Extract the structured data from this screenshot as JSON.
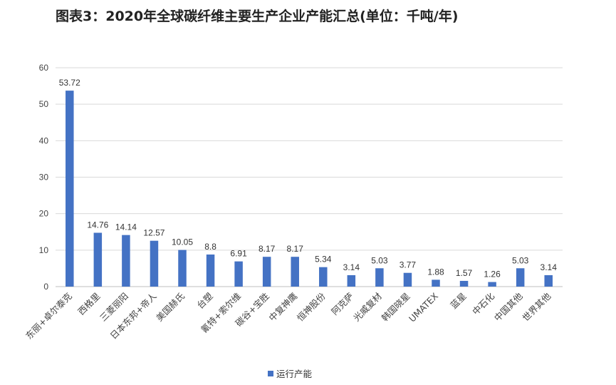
{
  "chart_data": {
    "type": "bar",
    "title": "图表3：2020年全球碳纤维主要生产企业产能汇总(单位：千吨/年)",
    "categories": [
      "东丽+卓尔泰克",
      "西格里",
      "三菱丽阳",
      "日本东邦+帝人",
      "美国赫氏",
      "台塑",
      "氰特+索尔维",
      "碳谷+宝胜",
      "中复神鹰",
      "恒神股份",
      "阿克萨",
      "光威复材",
      "韩国晓星",
      "UMATEX",
      "蓝星",
      "中石化",
      "中国其他",
      "世界其他"
    ],
    "series": [
      {
        "name": "运行产能",
        "values": [
          53.72,
          14.76,
          14.14,
          12.57,
          10.05,
          8.8,
          6.91,
          8.17,
          8.17,
          5.34,
          3.14,
          5.03,
          3.77,
          1.88,
          1.57,
          1.26,
          5.03,
          3.14
        ],
        "labels": [
          "53.72",
          "14.76",
          "14.14",
          "12.57",
          "10.05",
          "8.8",
          "6.91",
          "8.17",
          "8.17",
          "5.34",
          "3.14",
          "5.03",
          "3.77",
          "1.88",
          "1.57",
          "1.26",
          "5.03",
          "3.14"
        ],
        "color": "#4472c4"
      }
    ],
    "yticks": [
      0,
      10,
      20,
      30,
      40,
      50,
      60
    ],
    "ylim": [
      0,
      60
    ],
    "grid": true,
    "legend_position": "bottom"
  }
}
